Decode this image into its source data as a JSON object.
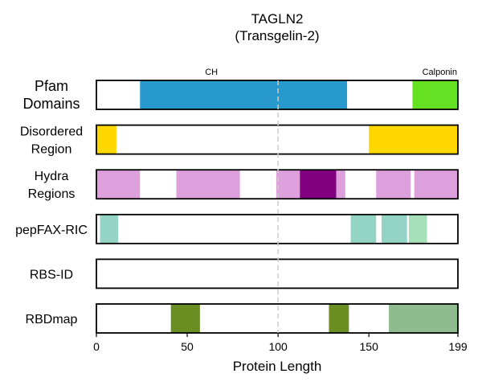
{
  "title": [
    "TAGLN2",
    "(Transgelin-2)"
  ],
  "chart_data": {
    "type": "bar",
    "subtype": "protein domain track plot",
    "title": "TAGLN2 (Transgelin-2)",
    "xlabel": "Protein Length",
    "ylabel": "",
    "xlim": [
      0,
      199
    ],
    "xticks": [
      0,
      50,
      100,
      150,
      199
    ],
    "reference_line_x": 100,
    "tracks": [
      {
        "label": [
          "Pfam",
          "Domains"
        ],
        "segments": [
          {
            "start": 24,
            "end": 138,
            "color": "#2899cc",
            "label": "CH"
          },
          {
            "start": 174,
            "end": 199,
            "color": "#66e022",
            "label": "Calponin"
          }
        ]
      },
      {
        "label": [
          "Disordered",
          "Region"
        ],
        "segments": [
          {
            "start": 0,
            "end": 11,
            "color": "#ffd700"
          },
          {
            "start": 150,
            "end": 199,
            "color": "#ffd700"
          }
        ]
      },
      {
        "label": [
          "Hydra",
          "Regions"
        ],
        "segments": [
          {
            "start": 0,
            "end": 24,
            "color": "#dda0dd"
          },
          {
            "start": 44,
            "end": 79,
            "color": "#dda0dd"
          },
          {
            "start": 99,
            "end": 112,
            "color": "#dda0dd"
          },
          {
            "start": 112,
            "end": 132,
            "color": "#800080"
          },
          {
            "start": 132,
            "end": 137,
            "color": "#dda0dd"
          },
          {
            "start": 154,
            "end": 173,
            "color": "#dda0dd"
          },
          {
            "start": 175,
            "end": 199,
            "color": "#dda0dd"
          }
        ]
      },
      {
        "label": [
          "pepFAX-RIC"
        ],
        "segments": [
          {
            "start": 2,
            "end": 12,
            "color": "#93d4c4"
          },
          {
            "start": 140,
            "end": 154,
            "color": "#93d4c4"
          },
          {
            "start": 157,
            "end": 171,
            "color": "#93d4c4"
          },
          {
            "start": 172,
            "end": 182,
            "color": "#a6e0b8"
          }
        ]
      },
      {
        "label": [
          "RBS-ID"
        ],
        "segments": []
      },
      {
        "label": [
          "RBDmap"
        ],
        "segments": [
          {
            "start": 41,
            "end": 57,
            "color": "#6b8e23"
          },
          {
            "start": 128,
            "end": 139,
            "color": "#6b8e23"
          },
          {
            "start": 161,
            "end": 199,
            "color": "#8fbc8f"
          }
        ]
      }
    ]
  }
}
